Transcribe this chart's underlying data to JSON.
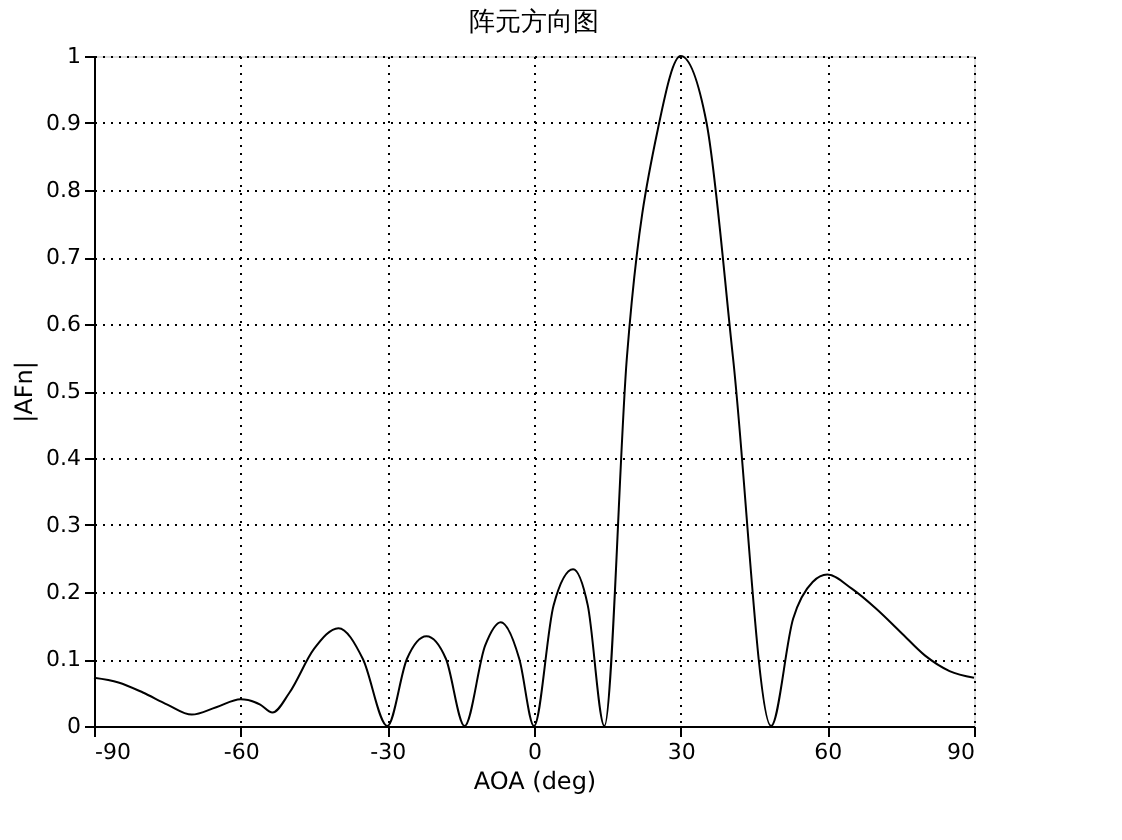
{
  "chart_data": {
    "type": "line",
    "title": "阵元方向图",
    "xlabel": "AOA (deg)",
    "ylabel": "|AFn|",
    "x": [
      -90,
      -85,
      -80,
      -75,
      -70,
      -65,
      -60,
      -56,
      -53.5,
      -50,
      -45,
      -40,
      -35,
      -30,
      -26,
      -22,
      -18,
      -14.2,
      -10,
      -6.8,
      -3,
      0,
      4,
      8,
      11,
      14.4,
      19,
      25.6,
      30,
      35.3,
      40.7,
      48.5,
      53,
      57,
      60,
      65,
      70,
      75,
      80,
      85,
      90
    ],
    "series": [
      {
        "color": "#000000",
        "values": [
          0.072,
          0.065,
          0.05,
          0.032,
          0.017,
          0.028,
          0.04,
          0.032,
          0.02,
          0.05,
          0.115,
          0.146,
          0.1,
          0,
          0.1,
          0.134,
          0.1,
          0,
          0.12,
          0.155,
          0.1,
          0,
          0.18,
          0.234,
          0.18,
          0,
          0.55,
          0.9,
          1,
          0.9,
          0.55,
          0,
          0.16,
          0.215,
          0.226,
          0.205,
          0.175,
          0.14,
          0.105,
          0.082,
          0.072
        ]
      }
    ],
    "xlim": [
      -90,
      90
    ],
    "xticks": [
      -90,
      -60,
      -30,
      0,
      30,
      60,
      90
    ],
    "ylim": [
      0,
      1
    ],
    "yticks": [
      0,
      0.1,
      0.2,
      0.3,
      0.4,
      0.5,
      0.6,
      0.7,
      0.8,
      0.9,
      1
    ],
    "grid": true,
    "marker": "none",
    "line_style": "solid"
  }
}
